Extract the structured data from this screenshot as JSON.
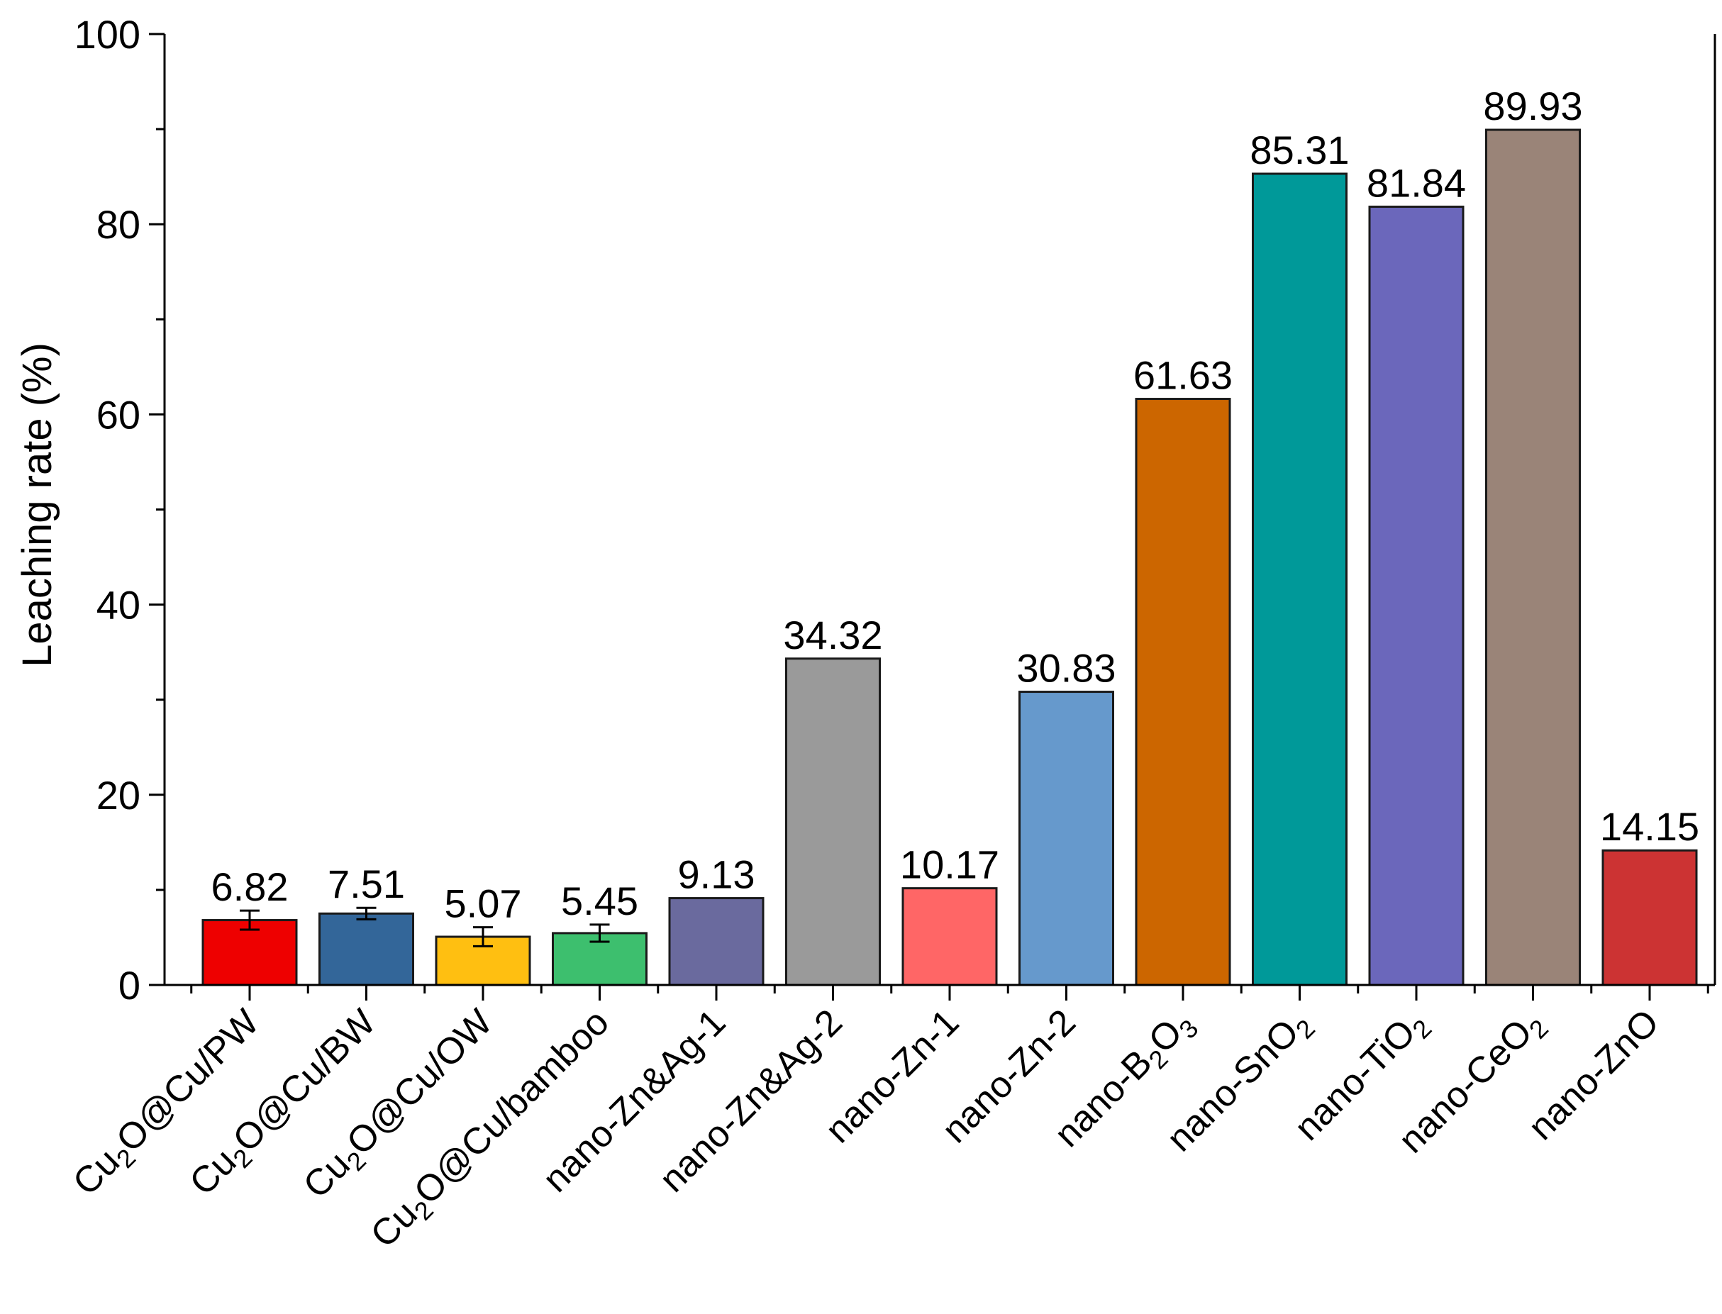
{
  "chart_data": {
    "type": "bar",
    "title": "",
    "xlabel": "",
    "ylabel": "Leaching rate (%)",
    "ylim": [
      0,
      100
    ],
    "yticks": [
      0,
      20,
      40,
      60,
      80,
      100
    ],
    "grid": false,
    "categories": [
      {
        "label": "Cu2O@Cu/PW",
        "parts": [
          [
            "Cu",
            ""
          ],
          [
            "2",
            "sub"
          ],
          [
            "O@Cu/PW",
            ""
          ]
        ]
      },
      {
        "label": "Cu2O@Cu/BW",
        "parts": [
          [
            "Cu",
            ""
          ],
          [
            "2",
            "sub"
          ],
          [
            "O@Cu/BW",
            ""
          ]
        ]
      },
      {
        "label": "Cu2O@Cu/OW",
        "parts": [
          [
            "Cu",
            ""
          ],
          [
            "2",
            "sub"
          ],
          [
            "O@Cu/OW",
            ""
          ]
        ]
      },
      {
        "label": "Cu2O@Cu/bamboo",
        "parts": [
          [
            "Cu",
            ""
          ],
          [
            "2",
            "sub"
          ],
          [
            "O@Cu/bamboo",
            ""
          ]
        ]
      },
      {
        "label": "nano-Zn&Ag-1",
        "parts": [
          [
            "nano-Zn&Ag-1",
            ""
          ]
        ]
      },
      {
        "label": "nano-Zn&Ag-2",
        "parts": [
          [
            "nano-Zn&Ag-2",
            ""
          ]
        ]
      },
      {
        "label": "nano-Zn-1",
        "parts": [
          [
            "nano-Zn-1",
            ""
          ]
        ]
      },
      {
        "label": "nano-Zn-2",
        "parts": [
          [
            "nano-Zn-2",
            ""
          ]
        ]
      },
      {
        "label": "nano-B2O3",
        "parts": [
          [
            "nano-B",
            ""
          ],
          [
            "2",
            "sub"
          ],
          [
            "O",
            ""
          ],
          [
            "3",
            "sub"
          ]
        ]
      },
      {
        "label": "nano-SnO2",
        "parts": [
          [
            "nano-SnO",
            ""
          ],
          [
            "2",
            "sub"
          ]
        ]
      },
      {
        "label": "nano-TiO2",
        "parts": [
          [
            "nano-TiO",
            ""
          ],
          [
            "2",
            "sub"
          ]
        ]
      },
      {
        "label": "nano-CeO2",
        "parts": [
          [
            "nano-CeO",
            ""
          ],
          [
            "2",
            "sub"
          ]
        ]
      },
      {
        "label": "nano-ZnO",
        "parts": [
          [
            "nano-ZnO",
            ""
          ]
        ]
      }
    ],
    "values": [
      6.82,
      7.51,
      5.07,
      5.45,
      9.13,
      34.32,
      10.17,
      30.83,
      61.63,
      85.31,
      81.84,
      89.93,
      14.15
    ],
    "value_labels": [
      "6.82",
      "7.51",
      "5.07",
      "5.45",
      "9.13",
      "34.32",
      "10.17",
      "30.83",
      "61.63",
      "85.31",
      "81.84",
      "89.93",
      "14.15"
    ],
    "error_bars": [
      1.0,
      0.6,
      1.0,
      0.9,
      null,
      null,
      null,
      null,
      null,
      null,
      null,
      null,
      null
    ],
    "colors": [
      "#ee0000",
      "#336699",
      "#ffbf11",
      "#3dbf6e",
      "#6a6a9e",
      "#9a9a9a",
      "#ff6666",
      "#6699cc",
      "#cc6600",
      "#009999",
      "#6b67bb",
      "#9a8478",
      "#cc3333"
    ]
  }
}
